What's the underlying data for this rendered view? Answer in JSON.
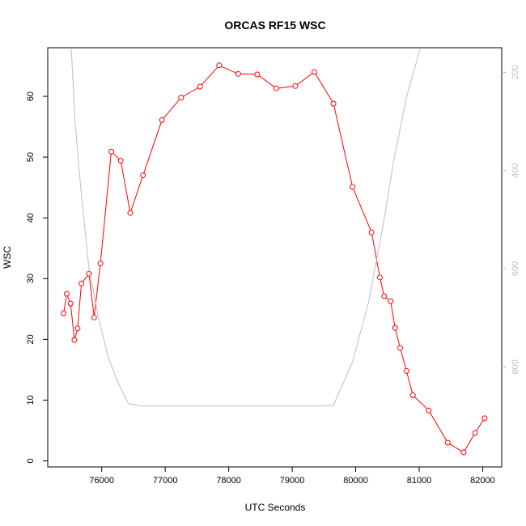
{
  "chart_data": {
    "type": "line",
    "title": "ORCAS RF15 WSC",
    "xlabel": "UTC Seconds",
    "ylabel": "WSC",
    "xlim": [
      75150,
      82300
    ],
    "ylim": [
      -1,
      68
    ],
    "y2lim": [
      1004,
      150
    ],
    "xticks": [
      "76000",
      "77000",
      "78000",
      "79000",
      "80000",
      "81000",
      "82000"
    ],
    "yticks": [
      "0",
      "10",
      "20",
      "30",
      "40",
      "50",
      "60"
    ],
    "y2ticks": [
      "200",
      "400",
      "600",
      "800"
    ],
    "colors": {
      "primary": "#ff0000",
      "secondary": "#bebebe"
    },
    "series": [
      {
        "axis": "left",
        "marker": "open-circle",
        "x": [
          75400,
          75450,
          75510,
          75570,
          75620,
          75680,
          75800,
          75880,
          75980,
          76150,
          76300,
          76450,
          76650,
          76950,
          77250,
          77550,
          77850,
          78150,
          78450,
          78750,
          79050,
          79350,
          79650,
          79950,
          80250,
          80380,
          80450,
          80550,
          80620,
          80700,
          80800,
          80900,
          81150,
          81450,
          81700,
          81880,
          82030
        ],
        "values": [
          24.3,
          27.5,
          25.9,
          19.9,
          21.8,
          29.2,
          30.8,
          23.6,
          32.5,
          50.9,
          49.4,
          40.8,
          47.0,
          56.1,
          59.8,
          61.6,
          65.1,
          63.7,
          63.6,
          61.3,
          61.7,
          64.0,
          58.8,
          45.1,
          37.6,
          30.2,
          27.1,
          26.3,
          21.9,
          18.6,
          14.8,
          10.8,
          8.3,
          3.0,
          1.4,
          4.6,
          7.0
        ]
      },
      {
        "axis": "right",
        "marker": "none",
        "x": [
          75520,
          75580,
          75680,
          75800,
          75950,
          76100,
          76250,
          76420,
          76650,
          77000,
          78000,
          79000,
          79500,
          79650,
          79950,
          80200,
          80420,
          80600,
          80800,
          81020
        ],
        "values": [
          150,
          300,
          450,
          600,
          700,
          780,
          830,
          875,
          880,
          880,
          880,
          880,
          880,
          878,
          790,
          670,
          520,
          380,
          250,
          150
        ]
      }
    ]
  }
}
